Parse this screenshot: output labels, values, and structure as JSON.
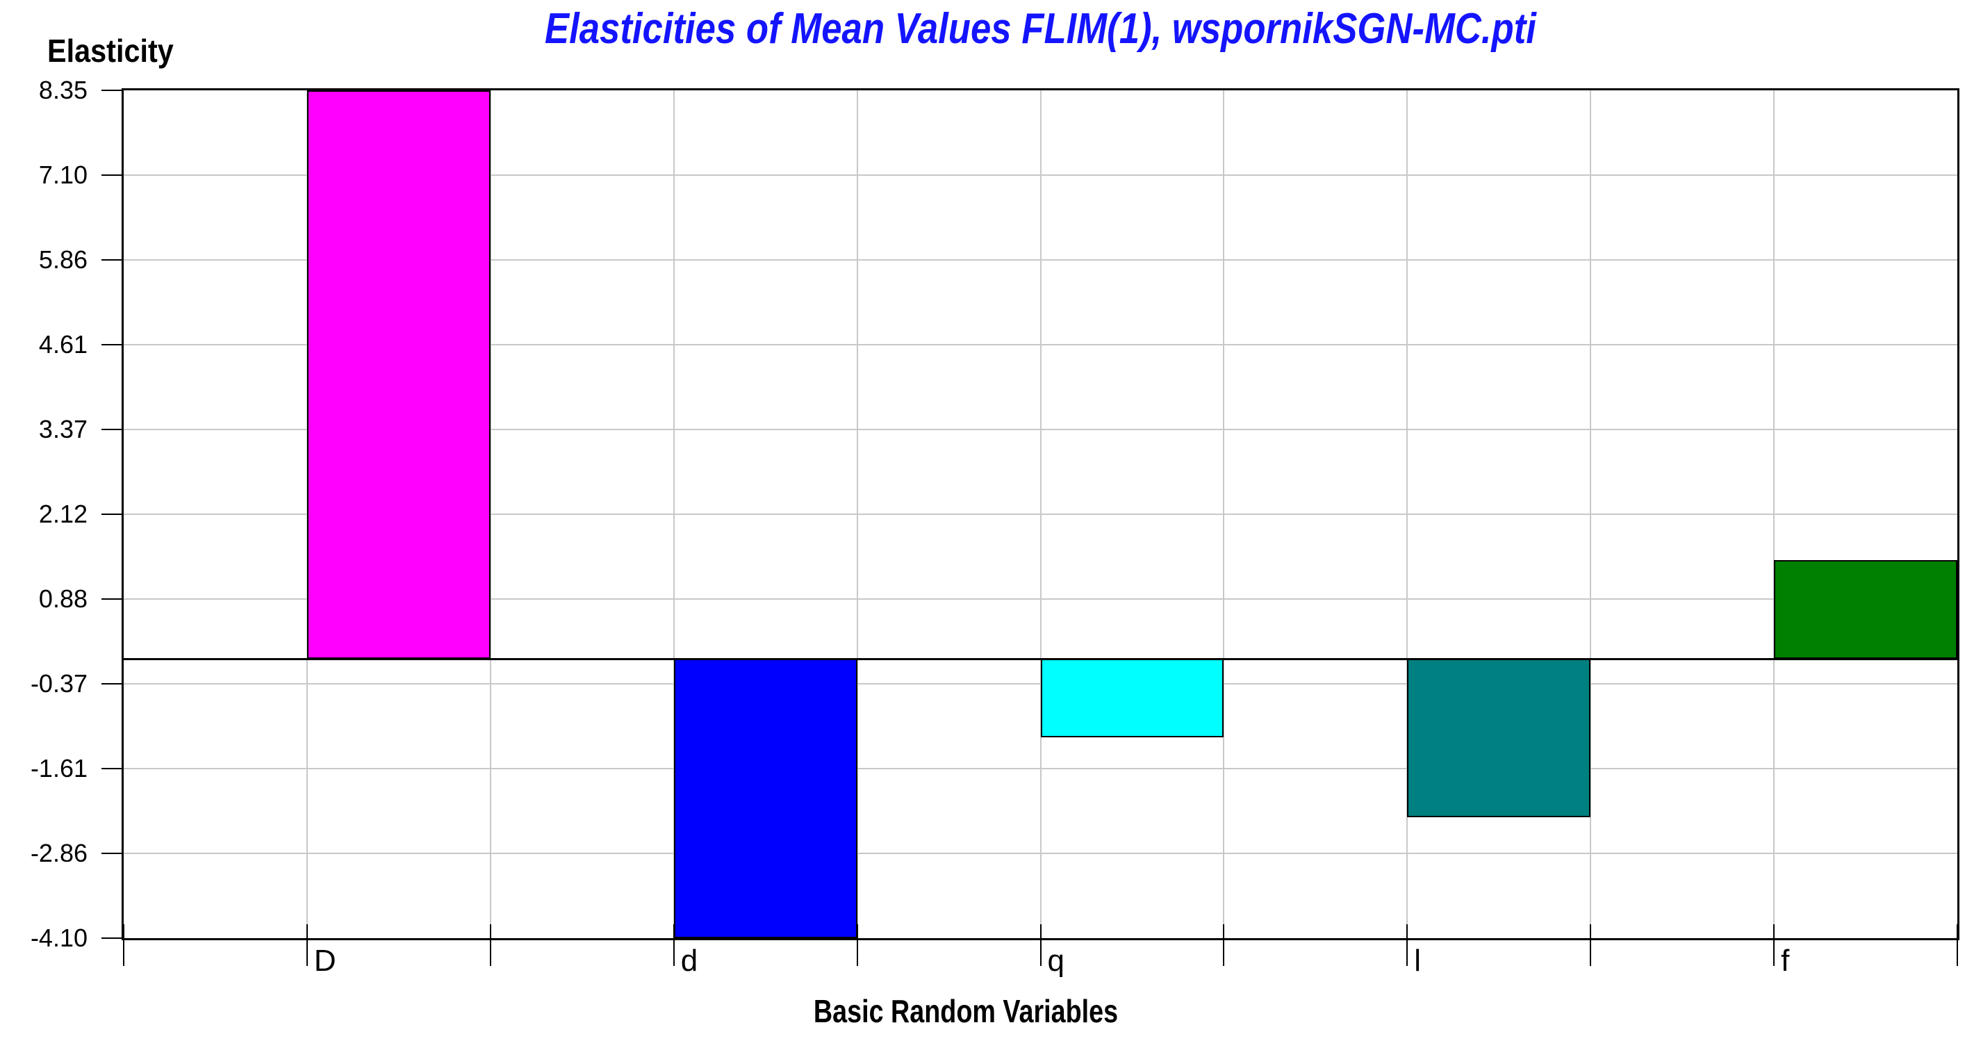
{
  "chart_data": {
    "type": "bar",
    "title": "Elasticities of Mean Values FLIM(1), wspornikSGN-MC.pti",
    "ylabel": "Elasticity",
    "xlabel": "Basic Random Variables",
    "categories": [
      "D",
      "d",
      "q",
      "l",
      "f"
    ],
    "values": [
      8.35,
      -4.1,
      -1.15,
      -2.32,
      1.45
    ],
    "bar_colors": [
      "#FF00FF",
      "#0000FF",
      "#00FFFF",
      "#008080",
      "#008000"
    ],
    "y_ticks": [
      "8.35",
      "7.10",
      "5.86",
      "4.61",
      "3.37",
      "2.12",
      "0.88",
      "-0.37",
      "-1.61",
      "-2.86",
      "-4.10"
    ],
    "ylim": [
      -4.1,
      8.35
    ],
    "grid": true,
    "legend_position": "none",
    "colors": {
      "title": "#1414FF",
      "gridline": "#C8C8C8",
      "axis": "#000000",
      "background": "#FFFFFF"
    }
  }
}
